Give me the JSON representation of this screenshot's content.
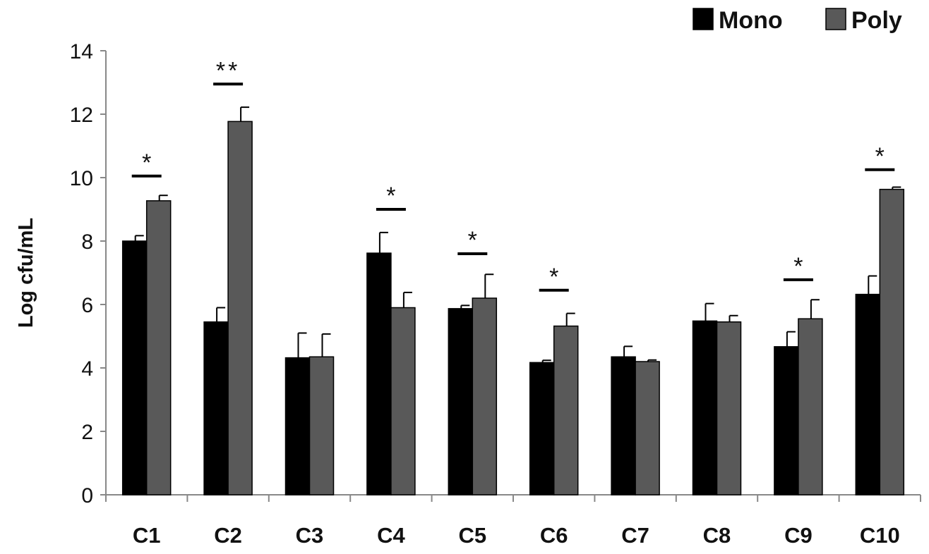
{
  "chart_data": {
    "type": "bar",
    "title": "",
    "xlabel": "",
    "ylabel": "Log cfu/mL",
    "ylim": [
      0,
      14
    ],
    "yticks": [
      "0",
      "2",
      "4",
      "6",
      "8",
      "10",
      "12",
      "14"
    ],
    "categories": [
      "C1",
      "C2",
      "C3",
      "C4",
      "C5",
      "C6",
      "C7",
      "C8",
      "C9",
      "C10"
    ],
    "legend_position": "top-right",
    "series": [
      {
        "name": "Mono",
        "color": "#000000",
        "values": [
          8.0,
          5.45,
          4.32,
          7.62,
          5.87,
          4.17,
          4.35,
          5.48,
          4.67,
          6.32
        ],
        "errors": [
          0.17,
          0.45,
          0.78,
          0.65,
          0.1,
          0.07,
          0.33,
          0.55,
          0.47,
          0.58
        ]
      },
      {
        "name": "Poly",
        "color": "#595959",
        "values": [
          9.27,
          11.77,
          4.35,
          5.9,
          6.2,
          5.32,
          4.2,
          5.45,
          5.55,
          9.63
        ],
        "errors": [
          0.17,
          0.45,
          0.72,
          0.48,
          0.75,
          0.4,
          0.05,
          0.2,
          0.6,
          0.07
        ]
      }
    ],
    "annotations": [
      {
        "category": "C1",
        "text": "*",
        "level": 10.05
      },
      {
        "category": "C2",
        "text": "**",
        "level": 12.95
      },
      {
        "category": "C4",
        "text": "*",
        "level": 9.0
      },
      {
        "category": "C5",
        "text": "*",
        "level": 7.6
      },
      {
        "category": "C6",
        "text": "*",
        "level": 6.45
      },
      {
        "category": "C9",
        "text": "*",
        "level": 6.78
      },
      {
        "category": "C10",
        "text": "*",
        "level": 10.25
      }
    ]
  }
}
